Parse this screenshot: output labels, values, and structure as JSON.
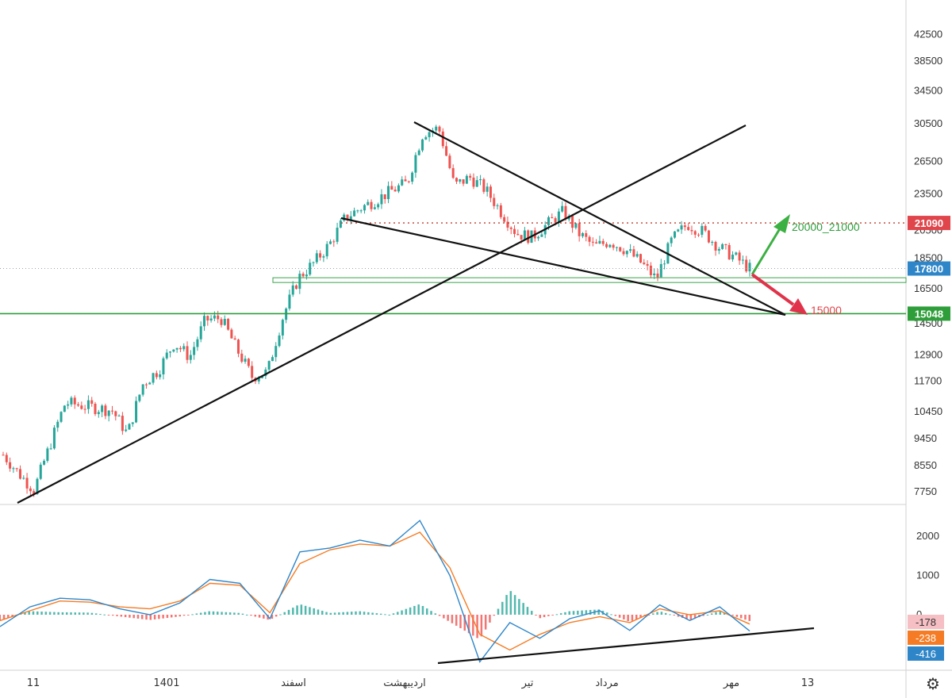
{
  "chart_data": [
    {
      "type": "candlestick",
      "panel": "price",
      "y_axis": {
        "ticks": [
          42500,
          38500,
          34500,
          30500,
          26500,
          23500,
          20500,
          18500,
          16500,
          14500,
          12900,
          11700,
          10450,
          9450,
          8550,
          7750
        ],
        "scale": "log"
      },
      "x_axis": {
        "labels": [
          "11",
          "1401",
          "اسفند",
          "اردیبهشت",
          "تیر",
          "مرداد",
          "مهر",
          "13"
        ]
      },
      "price_labels": [
        {
          "value": "21090",
          "color": "#e0454b"
        },
        {
          "value": "17800",
          "color": "#2e86c9"
        },
        {
          "value": "15048",
          "color": "#2e9e3a"
        }
      ],
      "levels": {
        "resistance_dotted": 21090,
        "current_dotted": 17800,
        "support_line": 15048,
        "support_zone": [
          16900,
          17200
        ]
      },
      "closes": [
        8900,
        8300,
        7800,
        9200,
        10800,
        10700,
        10600,
        10500,
        9600,
        11600,
        12200,
        13500,
        12800,
        14700,
        14800,
        13200,
        11900,
        12100,
        14900,
        17200,
        18200,
        19500,
        21500,
        22300,
        23000,
        23800,
        24500,
        29500,
        30000,
        24200,
        25000,
        23900,
        22000,
        20300,
        20000,
        21000,
        22000,
        20300,
        19300,
        19700,
        19100,
        18200,
        17100,
        19800,
        21000,
        20400,
        19300,
        18600,
        17800
      ],
      "annotations": [
        {
          "text": "20000_21000",
          "color": "#2e9e3a",
          "arrow": "up"
        },
        {
          "text": "15000",
          "color": "#e0454b",
          "arrow": "down"
        }
      ],
      "colors": {
        "up": "#26a69a",
        "down": "#ef5350"
      }
    },
    {
      "type": "macd",
      "panel": "indicator",
      "y_axis": {
        "ticks": [
          2000,
          1000,
          0
        ]
      },
      "value_labels": [
        {
          "value": "-178",
          "color": "#f6bfc4",
          "text_color": "#333333"
        },
        {
          "value": "-238",
          "color": "#f57c24",
          "text_color": "#ffffff"
        },
        {
          "value": "-416",
          "color": "#2e86c9",
          "text_color": "#ffffff"
        }
      ],
      "macd_line": [
        -300,
        200,
        420,
        380,
        150,
        0,
        300,
        900,
        800,
        -100,
        1600,
        1700,
        1900,
        1750,
        2400,
        1000,
        -1200,
        -200,
        -600,
        -100,
        100,
        -400,
        250,
        -150,
        200,
        -416
      ],
      "signal_line": [
        -150,
        100,
        350,
        320,
        200,
        150,
        350,
        800,
        750,
        50,
        1300,
        1650,
        1800,
        1750,
        2100,
        1200,
        -500,
        -900,
        -500,
        -200,
        -50,
        -200,
        150,
        0,
        100,
        -238
      ],
      "colors": {
        "macd": "#2e86c9",
        "signal": "#f57c24",
        "hist_pos": "#26a69a",
        "hist_neg": "#ef5350"
      }
    }
  ]
}
